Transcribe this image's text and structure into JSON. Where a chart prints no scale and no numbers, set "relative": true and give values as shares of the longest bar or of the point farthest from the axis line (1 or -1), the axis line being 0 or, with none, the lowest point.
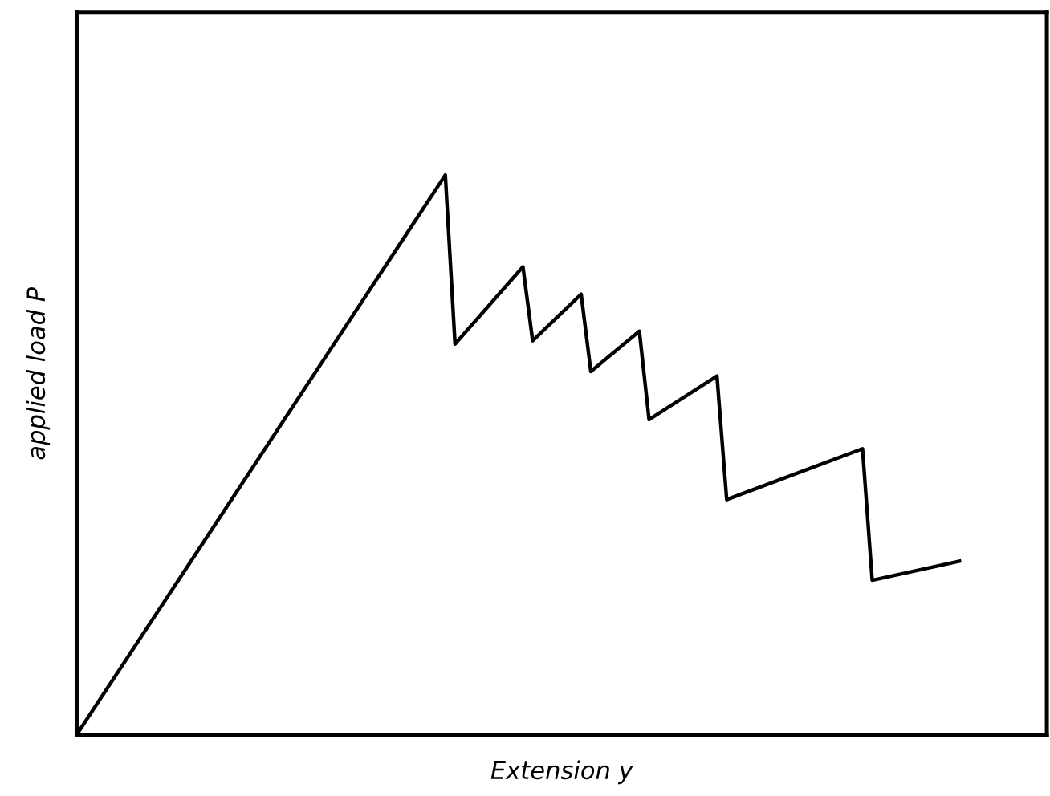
{
  "chart_data": {
    "type": "line",
    "relative": true,
    "xlabel": "Extension y",
    "ylabel": "applied load P",
    "marker": "none",
    "line_style": "solid",
    "categories": [
      null,
      null,
      null,
      null,
      null,
      null,
      null,
      null,
      null,
      null,
      null,
      null,
      null,
      null,
      null,
      null,
      null,
      null,
      null,
      null,
      null,
      null,
      null,
      null,
      null,
      null,
      null,
      null,
      null,
      null,
      null,
      null,
      null,
      null,
      null,
      null,
      null,
      null,
      null,
      null,
      null,
      null,
      null,
      null,
      null,
      null,
      null,
      null,
      null,
      null,
      null,
      null,
      null,
      null,
      null,
      null,
      null,
      null,
      null,
      null,
      null,
      null,
      null,
      null,
      null,
      null,
      null,
      null,
      null,
      null,
      null,
      null,
      null,
      null,
      null,
      null,
      null,
      null,
      null,
      null,
      null,
      null,
      null,
      null,
      null,
      null,
      null,
      null,
      null,
      null,
      null,
      null,
      null,
      null,
      null,
      null,
      null,
      null,
      null,
      null,
      null
    ],
    "series": [
      {
        "color": "#000000",
        "values": [
          0,
          null,
          null,
          null,
          null,
          null,
          null,
          null,
          null,
          null,
          null,
          null,
          null,
          null,
          null,
          null,
          null,
          null,
          null,
          null,
          null,
          null,
          null,
          null,
          null,
          null,
          null,
          null,
          null,
          null,
          null,
          null,
          null,
          null,
          null,
          null,
          null,
          null,
          1,
          0.698,
          null,
          null,
          null,
          null,
          null,
          null,
          0.836,
          0.704,
          null,
          null,
          null,
          null,
          0.787,
          0.649,
          null,
          null,
          null,
          null,
          0.721,
          0.563,
          null,
          null,
          null,
          null,
          null,
          null,
          0.641,
          0.42,
          null,
          null,
          null,
          null,
          null,
          null,
          null,
          null,
          null,
          null,
          null,
          null,
          null,
          0.511,
          0.276,
          null,
          null,
          null,
          null,
          null,
          null,
          null,
          null,
          0.31,
          null,
          null,
          null,
          null,
          null,
          null,
          null,
          null,
          null
        ]
      }
    ]
  }
}
